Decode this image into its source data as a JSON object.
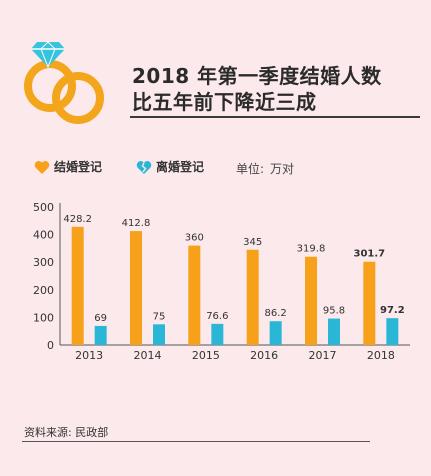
{
  "header": {
    "title_line1": "2018 年第一季度结婚人数",
    "title_line2": "比五年前下降近三成"
  },
  "legend": {
    "marriage_label": "结婚登记",
    "divorce_label": "离婚登记",
    "unit_label": "单位:",
    "unit_value": "万对"
  },
  "source": "资料来源: 民政部",
  "colors": {
    "marriage": "#f7a11a",
    "divorce": "#2ab7d5",
    "background": "#fbe9ec",
    "ring": "#f3a51c",
    "gem": "#35c4dd"
  },
  "chart_data": {
    "type": "bar",
    "categories": [
      "2013",
      "2014",
      "2015",
      "2016",
      "2017",
      "2018"
    ],
    "series": [
      {
        "name": "结婚登记",
        "values": [
          428.2,
          412.8,
          360,
          345,
          319.8,
          301.7
        ],
        "labels": [
          "428.2",
          "412.8",
          "360",
          "345",
          "319.8",
          "301.7"
        ]
      },
      {
        "name": "离婚登记",
        "values": [
          69,
          75,
          76.6,
          86.2,
          95.8,
          97.2
        ],
        "labels": [
          "69",
          "75",
          "76.6",
          "86.2",
          "95.8",
          "97.2"
        ]
      }
    ],
    "yticks": [
      "0",
      "100",
      "200",
      "300",
      "400",
      "500"
    ],
    "ylim": [
      0,
      500
    ],
    "title": "",
    "xlabel": "",
    "ylabel": "",
    "grid": false,
    "legend": "top-left",
    "highlight_category": "2018"
  }
}
